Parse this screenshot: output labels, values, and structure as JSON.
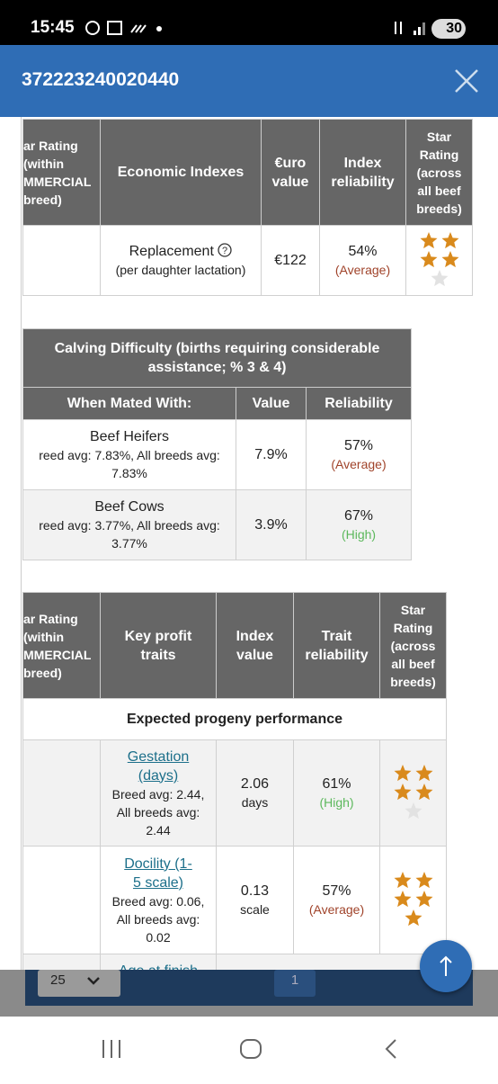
{
  "status_bar": {
    "time": "15:45",
    "battery": "30"
  },
  "header": {
    "title": "372223240020440"
  },
  "economic_table": {
    "headers": [
      "ar Rating (within MMERCIAL breed)",
      "Economic Indexes",
      "€uro value",
      "Index reliability",
      "Star Rating (across all beef breeds)"
    ],
    "rows": [
      {
        "index": "Replacement",
        "note": "(per daughter lactation)",
        "euro_value": "€122",
        "reliability": "54%",
        "reliability_label": "(Average)",
        "reliability_color": "#a0432a",
        "stars": {
          "filled": 4,
          "of": 5
        }
      }
    ]
  },
  "calving_table": {
    "title": "Calving Difficulty (births requiring considerable assistance; % 3 & 4)",
    "headers": [
      "When Mated With:",
      "Value",
      "Reliability"
    ],
    "rows": [
      {
        "name": "Beef Heifers",
        "averages": "reed avg: 7.83%, All breeds avg: 7.83%",
        "value": "7.9%",
        "reliability": "57%",
        "reliability_label": "(Average)",
        "reliability_color": "#a0432a"
      },
      {
        "name": "Beef Cows",
        "averages": "reed avg: 3.77%, All breeds avg: 3.77%",
        "value": "3.9%",
        "reliability": "67%",
        "reliability_label": "(High)",
        "reliability_color": "#5cb85c"
      }
    ]
  },
  "traits_table": {
    "headers": [
      "ar Rating (within MMERCIAL breed)",
      "Key profit traits",
      "Index value",
      "Trait reliability",
      "Star Rating (across all beef breeds)"
    ],
    "section": "Expected progeny performance",
    "rows": [
      {
        "trait": "Gestation (days)",
        "averages": "Breed avg: 2.44, All breeds avg: 2.44",
        "index_value": "2.06",
        "unit": "days",
        "reliability": "61%",
        "reliability_label": "(High)",
        "reliability_color": "#5cb85c",
        "stars": {
          "filled": 4,
          "of": 5
        }
      },
      {
        "trait": "Docility (1-5 scale)",
        "averages": "Breed avg: 0.06, All breeds avg: 0.02",
        "index_value": "0.13",
        "unit": "scale",
        "reliability": "57%",
        "reliability_label": "(Average)",
        "reliability_color": "#a0432a",
        "stars": {
          "filled": 5,
          "of": 5
        }
      }
    ],
    "partial_row": "Age at finish"
  },
  "pagination": {
    "page_size": "25",
    "page": "1"
  }
}
